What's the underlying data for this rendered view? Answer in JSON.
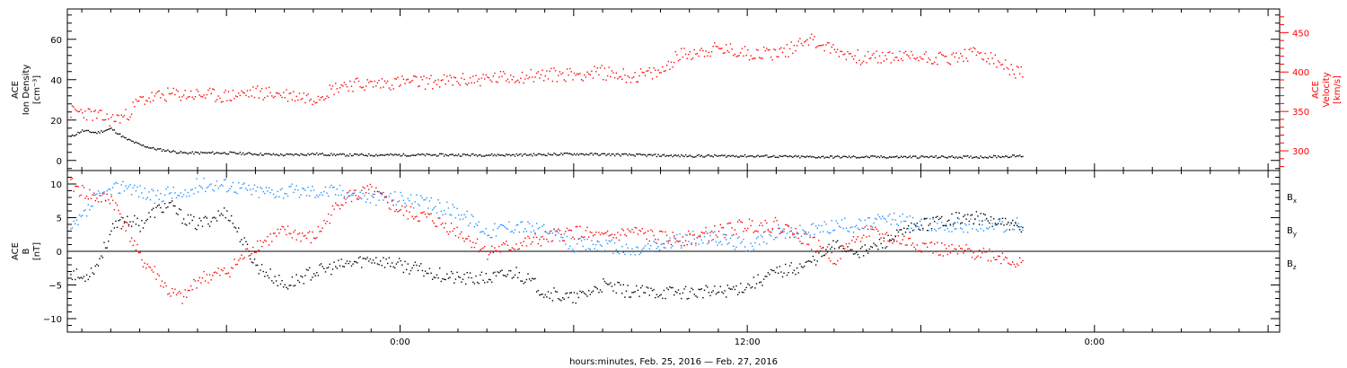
{
  "colors": {
    "black": "#000000",
    "red": "#ff0000",
    "blue": "#1e90ff"
  },
  "chart_data": [
    {
      "type": "scatter",
      "panel": "top",
      "left_ylabel_lines": [
        "ACE",
        "Ion Density",
        "[cm⁻³]"
      ],
      "right_ylabel_lines": [
        "ACE",
        "Velocity",
        "[km/s]"
      ],
      "left_ylim": [
        -5,
        75
      ],
      "left_yticks": [
        0,
        20,
        40,
        60
      ],
      "left_tick_labels": [
        "0",
        "20",
        "40",
        "60"
      ],
      "right_ylim": [
        275,
        480
      ],
      "right_yticks": [
        300,
        350,
        400,
        450
      ],
      "right_tick_labels": [
        "300",
        "350",
        "400",
        "450"
      ],
      "x_hours_range": [
        -11.5,
        30.4
      ],
      "series": [
        {
          "color": "#000000",
          "axis": "left",
          "x": [
            -11.4,
            -11,
            -10.5,
            -10,
            -9.5,
            -9,
            -8.5,
            -8,
            -7.5,
            -7,
            -6,
            -5,
            -4,
            -3,
            -2,
            -1,
            0,
            2,
            4,
            6,
            8,
            10,
            12,
            14,
            16,
            18,
            20,
            21.5
          ],
          "y": [
            12,
            15,
            14,
            16,
            11,
            8,
            6,
            5,
            4,
            4,
            4,
            3.5,
            3,
            3.5,
            3,
            3,
            3,
            3,
            3,
            3.5,
            3,
            2.5,
            2.5,
            2,
            2,
            2,
            2,
            2.5
          ]
        },
        {
          "color": "#ff0000",
          "axis": "right",
          "x": [
            -11.4,
            -11,
            -10.5,
            -10,
            -9.5,
            -9,
            -8,
            -7,
            -6,
            -5,
            -4,
            -3,
            -2,
            -1,
            0,
            1,
            2,
            3,
            4,
            5,
            6,
            7,
            8,
            9,
            9.5,
            10,
            11,
            12,
            13,
            13.5,
            14,
            15,
            16,
            17,
            18,
            19,
            20,
            21,
            21.5
          ],
          "y": [
            350,
            350,
            345,
            340,
            345,
            365,
            372,
            372,
            370,
            375,
            372,
            368,
            385,
            385,
            388,
            388,
            390,
            392,
            395,
            397,
            398,
            400,
            395,
            400,
            420,
            425,
            430,
            425,
            425,
            430,
            445,
            428,
            418,
            420,
            420,
            418,
            425,
            405,
            398
          ]
        }
      ]
    },
    {
      "type": "scatter",
      "panel": "bottom",
      "left_ylabel_lines": [
        "ACE",
        "B",
        "[nT]"
      ],
      "left_ylim": [
        -12,
        12
      ],
      "left_yticks": [
        -10,
        -5,
        0,
        5,
        10
      ],
      "left_tick_labels": [
        "−10",
        "−5",
        "0",
        "5",
        "10"
      ],
      "x_hours_range": [
        -11.5,
        30.4
      ],
      "series": [
        {
          "name": "Bx",
          "color": "#000000",
          "x": [
            -11.4,
            -11,
            -10.5,
            -10,
            -9.5,
            -9,
            -8.5,
            -8,
            -7.5,
            -7,
            -6,
            -5,
            -4,
            -3,
            -2,
            -1,
            0,
            1,
            2,
            3,
            4,
            5,
            6,
            7,
            8,
            9,
            10,
            11,
            12,
            13,
            14,
            15,
            16,
            17,
            18,
            19,
            20,
            21,
            21.5
          ],
          "y": [
            -3,
            -4,
            -2,
            3,
            5,
            4,
            6,
            7,
            5,
            4,
            6,
            -2,
            -5,
            -3,
            -2,
            -1,
            -2,
            -3,
            -4,
            -4,
            -3,
            -6,
            -7,
            -5,
            -6,
            -6,
            -6,
            -6,
            -5,
            -3,
            -2,
            1,
            0,
            2,
            4,
            5,
            5,
            4,
            3
          ]
        },
        {
          "name": "By",
          "color": "#1e90ff",
          "x": [
            -11.4,
            -11,
            -10.5,
            -10,
            -9.5,
            -9,
            -8.5,
            -8,
            -7.5,
            -7,
            -6,
            -5,
            -4,
            -3,
            -2,
            -1,
            0,
            1,
            2,
            3,
            4,
            5,
            6,
            7,
            8,
            9,
            10,
            11,
            12,
            13,
            14,
            15,
            16,
            17,
            18,
            19,
            20,
            21,
            21.5
          ],
          "y": [
            3,
            5,
            8,
            9,
            10,
            9,
            8,
            9,
            8,
            10,
            10,
            9,
            9,
            9,
            9,
            8,
            8,
            7,
            6,
            3,
            4,
            3,
            1,
            1,
            0,
            1,
            2,
            2,
            1,
            3,
            3,
            4,
            4,
            5,
            4,
            4,
            4,
            4,
            4
          ]
        },
        {
          "name": "Bz",
          "color": "#ff0000",
          "x": [
            -11.4,
            -11,
            -10.5,
            -10,
            -9.5,
            -9,
            -8.5,
            -8,
            -7.5,
            -7,
            -6,
            -5,
            -4,
            -3,
            -2,
            -1,
            0,
            1,
            2,
            3,
            4,
            5,
            6,
            7,
            8,
            9,
            10,
            11,
            12,
            13,
            14,
            15,
            16,
            17,
            18,
            19,
            20,
            21,
            21.5
          ],
          "y": [
            10,
            9,
            8,
            8,
            4,
            -1,
            -3,
            -6,
            -7,
            -4,
            -3,
            1,
            3,
            2,
            8,
            9,
            6,
            5,
            3,
            0,
            1,
            2,
            3,
            2,
            3,
            2,
            2,
            3,
            4,
            4,
            2,
            -1,
            3,
            2,
            1,
            0,
            0,
            -1,
            -2
          ]
        }
      ],
      "legend_labels": [
        {
          "main": "B",
          "sub": "x",
          "color": "#000000"
        },
        {
          "main": "B",
          "sub": "y",
          "color": "#1e90ff"
        },
        {
          "main": "B",
          "sub": "z",
          "color": "#ff0000"
        }
      ]
    }
  ],
  "x_axis": {
    "tick_labels": [
      {
        "hour": 0,
        "text": "0:00"
      },
      {
        "hour": 12,
        "text": "12:00"
      },
      {
        "hour": 24,
        "text": "0:00"
      }
    ],
    "xlabel": "hours:minutes, Feb. 25, 2016 — Feb. 27, 2016"
  }
}
